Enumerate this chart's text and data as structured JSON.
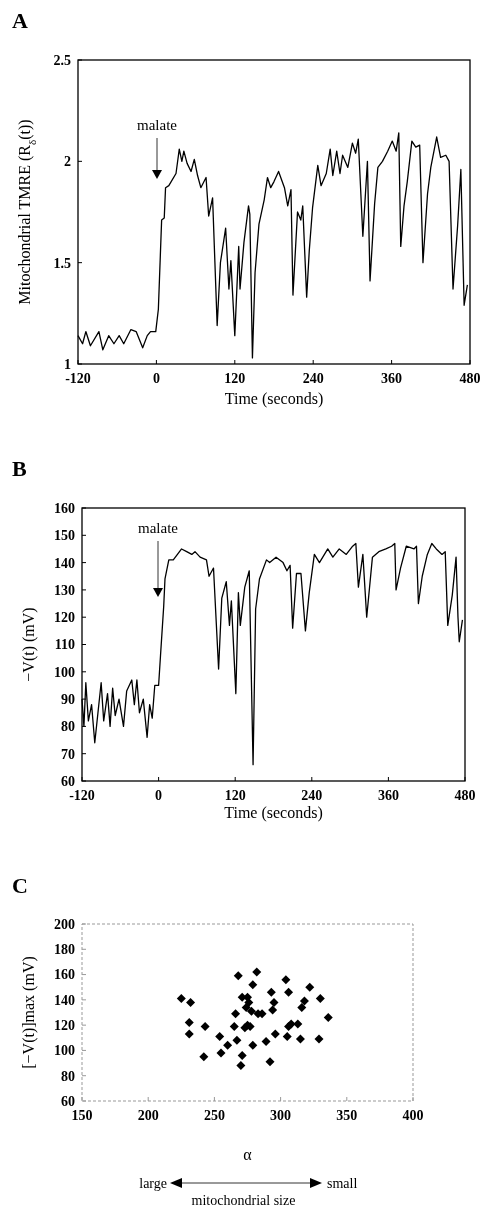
{
  "chart_data": [
    {
      "type": "line",
      "title": "A",
      "xlabel": "Time (seconds)",
      "ylabel": "Mitochondrial TMRE (R$_{δ}$(t))",
      "xlim": [
        -120,
        480
      ],
      "xticks": [
        -120,
        0,
        120,
        240,
        360,
        480
      ],
      "ylim": [
        1,
        2.5
      ],
      "yticks": [
        1,
        1.5,
        2,
        2.5
      ],
      "annotations": [
        "malate"
      ],
      "x": [
        -120,
        -113,
        -108,
        -101,
        -88,
        -82,
        -73,
        -65,
        -57,
        -50,
        -39,
        -31,
        -21,
        -14,
        -9,
        -1,
        3,
        8,
        12,
        14,
        19,
        30,
        35,
        39,
        42,
        47,
        53,
        58,
        63,
        68,
        76,
        80,
        86,
        93,
        98,
        106,
        111,
        114,
        120,
        126,
        128,
        134,
        141,
        143,
        147,
        151,
        157,
        165,
        170,
        175,
        180,
        187,
        196,
        201,
        206,
        209,
        216,
        221,
        224,
        230,
        234,
        239,
        247,
        252,
        260,
        266,
        270,
        276,
        281,
        285,
        293,
        300,
        305,
        309,
        316,
        323,
        327,
        334,
        339,
        346,
        354,
        361,
        367,
        371,
        374,
        379,
        384,
        391,
        397,
        403,
        408,
        415,
        420,
        429,
        435,
        443,
        448,
        454,
        461,
        466,
        471,
        476
      ],
      "series": [
        {
          "color": "#000000",
          "values": [
            1.14,
            1.1,
            1.16,
            1.09,
            1.16,
            1.07,
            1.14,
            1.1,
            1.14,
            1.1,
            1.17,
            1.16,
            1.08,
            1.14,
            1.16,
            1.16,
            1.27,
            1.71,
            1.72,
            1.87,
            1.88,
            1.94,
            2.06,
            2.0,
            2.05,
            1.99,
            1.95,
            2.01,
            1.93,
            1.87,
            1.92,
            1.73,
            1.82,
            1.19,
            1.5,
            1.67,
            1.37,
            1.51,
            1.14,
            1.58,
            1.37,
            1.6,
            1.78,
            1.74,
            1.03,
            1.45,
            1.69,
            1.81,
            1.92,
            1.87,
            1.9,
            1.95,
            1.87,
            1.78,
            1.86,
            1.34,
            1.75,
            1.71,
            1.78,
            1.33,
            1.56,
            1.77,
            1.98,
            1.88,
            1.94,
            2.06,
            1.93,
            2.05,
            1.94,
            2.03,
            1.97,
            2.09,
            2.04,
            2.11,
            1.63,
            2.0,
            1.41,
            1.79,
            1.97,
            2.0,
            2.05,
            2.1,
            2.05,
            2.14,
            1.58,
            1.78,
            1.9,
            2.1,
            2.07,
            2.08,
            1.5,
            1.84,
            1.97,
            2.12,
            2.02,
            2.03,
            2.0,
            1.37,
            1.68,
            1.96,
            1.29,
            1.39
          ]
        }
      ]
    },
    {
      "type": "line",
      "title": "B",
      "xlabel": "Time (seconds)",
      "ylabel": "−V(t) (mV)",
      "xlim": [
        -120,
        480
      ],
      "xticks": [
        -120,
        0,
        120,
        240,
        360,
        480
      ],
      "ylim": [
        60,
        160
      ],
      "yticks": [
        60,
        70,
        80,
        90,
        100,
        110,
        120,
        130,
        140,
        150,
        160
      ],
      "annotations": [
        "malate"
      ],
      "x": [
        -120,
        -117,
        -114,
        -110,
        -105,
        -100,
        -95,
        -90,
        -86,
        -80,
        -76,
        -72,
        -68,
        -62,
        -55,
        -50,
        -42,
        -38,
        -34,
        -30,
        -24,
        -18,
        -14,
        -10,
        -6,
        0,
        3,
        8,
        10,
        16,
        23,
        36,
        44,
        52,
        57,
        65,
        75,
        79,
        86,
        94,
        99,
        106,
        111,
        114,
        121,
        125,
        128,
        135,
        142,
        148,
        152,
        158,
        169,
        174,
        184,
        195,
        201,
        206,
        210,
        216,
        223,
        230,
        236,
        244,
        252,
        265,
        273,
        283,
        294,
        304,
        309,
        313,
        320,
        326,
        335,
        345,
        356,
        365,
        370,
        372,
        379,
        388,
        400,
        404,
        407,
        413,
        421,
        428,
        435,
        444,
        449,
        453,
        460,
        466,
        469,
        471,
        476
      ],
      "series": [
        {
          "color": "#000000",
          "values": [
            90,
            80,
            96,
            82,
            88,
            74,
            85,
            96,
            82,
            92,
            80,
            94,
            84,
            90,
            80,
            93,
            97,
            88,
            97,
            85,
            90,
            76,
            88,
            83,
            95,
            95,
            106,
            124,
            134,
            141,
            141,
            145,
            144,
            143,
            144,
            142,
            141,
            135,
            138,
            101,
            127,
            133,
            117,
            126,
            92,
            129,
            117,
            131,
            137,
            66,
            123,
            134,
            141,
            140,
            142,
            140,
            137,
            139,
            116,
            136,
            136,
            115,
            129,
            143,
            140,
            145,
            142,
            145,
            143,
            146,
            147,
            131,
            143,
            120,
            142,
            144,
            145,
            146,
            147,
            130,
            138,
            146,
            145,
            146,
            125,
            135,
            143,
            147,
            145,
            143,
            144,
            117,
            128,
            142,
            120,
            111,
            119
          ]
        }
      ]
    },
    {
      "type": "scatter",
      "title": "C",
      "xlabel": "α",
      "ylabel": "[−V(t)]max (mV)",
      "xlim": [
        150,
        400
      ],
      "xticks": [
        150,
        200,
        250,
        300,
        350,
        400
      ],
      "ylim": [
        60,
        200
      ],
      "yticks": [
        60,
        80,
        100,
        120,
        140,
        160,
        180,
        200
      ],
      "marker": "diamond",
      "annotations": [
        "large",
        "small",
        "mitochondrial size"
      ],
      "x": [
        225,
        232,
        231,
        231,
        243,
        242,
        254,
        255,
        260,
        268,
        271,
        275,
        279,
        282,
        276,
        274,
        278,
        266,
        265,
        273,
        275,
        277,
        267,
        271,
        270,
        279,
        283,
        286,
        289,
        292,
        293,
        295,
        294,
        296,
        304,
        306,
        305,
        306,
        308,
        313,
        315,
        318,
        316,
        322,
        330,
        329,
        336
      ],
      "series": [
        {
          "color": "#000000",
          "values": [
            141,
            138,
            122,
            113,
            119,
            95,
            111,
            98,
            104,
            159,
            142,
            142,
            152,
            162,
            138,
            134,
            131,
            129,
            119,
            118,
            120,
            119,
            108,
            96,
            88,
            104,
            129,
            129,
            107,
            91,
            146,
            138,
            132,
            113,
            156,
            146,
            111,
            119,
            121,
            121,
            109,
            139,
            134,
            150,
            141,
            109,
            126
          ]
        }
      ]
    }
  ]
}
